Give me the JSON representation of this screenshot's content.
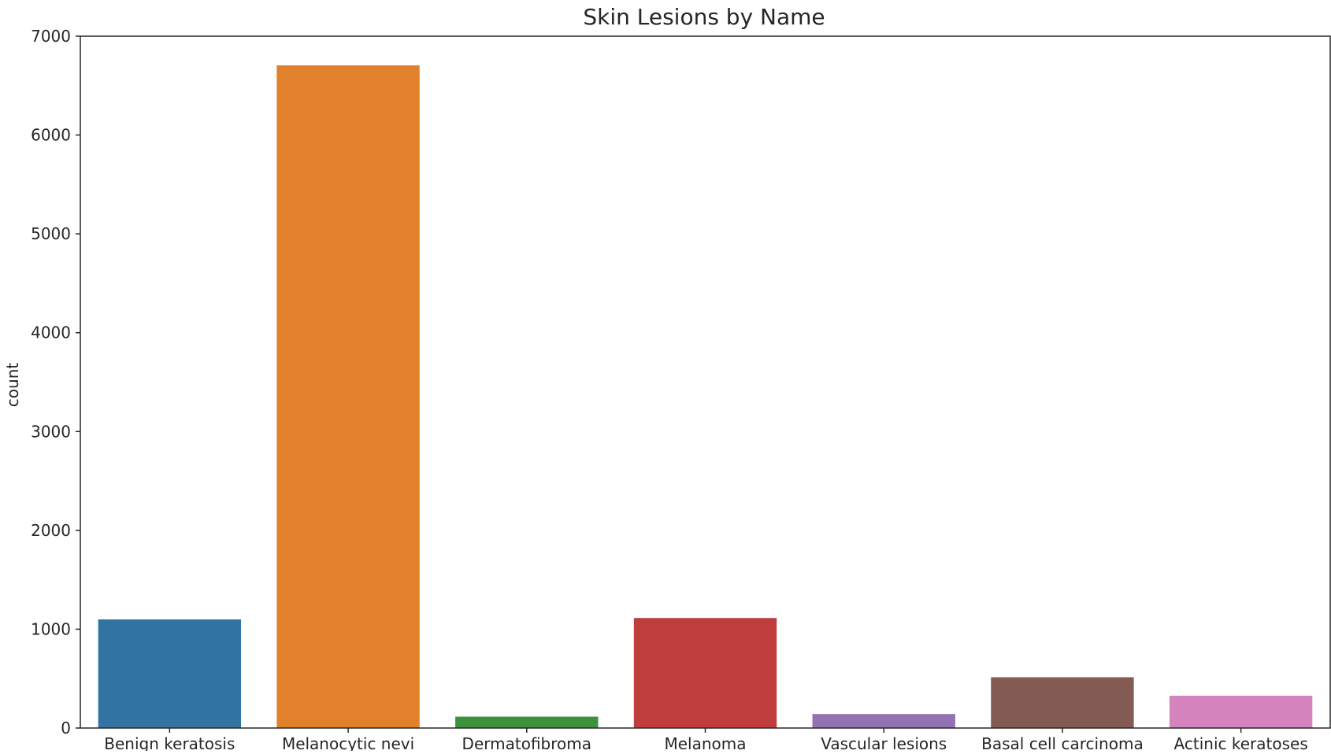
{
  "chart_data": {
    "type": "bar",
    "title": "Skin Lesions by Name",
    "xlabel": "",
    "ylabel": "count",
    "categories": [
      "Benign keratosis",
      "Melanocytic nevi",
      "Dermatofibroma",
      "Melanoma",
      "Vascular lesions",
      "Basal cell carcinoma",
      "Actinic keratoses"
    ],
    "values": [
      1099,
      6705,
      115,
      1113,
      142,
      514,
      327
    ],
    "colors": [
      "#3274a1",
      "#e1812c",
      "#3a923a",
      "#c03d3e",
      "#9372b2",
      "#845b53",
      "#d684bd"
    ],
    "ylim": [
      0,
      7000
    ],
    "yticks": [
      0,
      1000,
      2000,
      3000,
      4000,
      5000,
      6000,
      7000
    ],
    "grid": false,
    "legend": "none"
  }
}
